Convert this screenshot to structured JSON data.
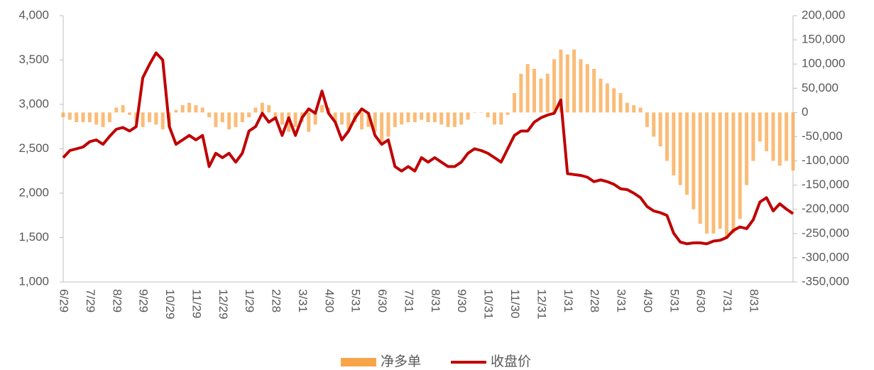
{
  "chart_data": {
    "type": "bar-line",
    "categories": [
      "6/29",
      null,
      null,
      null,
      "7/29",
      null,
      null,
      null,
      "8/29",
      null,
      null,
      null,
      "9/29",
      null,
      null,
      null,
      "10/29",
      null,
      null,
      null,
      "11/29",
      null,
      null,
      null,
      "12/29",
      null,
      null,
      null,
      "1/29",
      null,
      null,
      null,
      "2/28",
      null,
      null,
      null,
      "3/31",
      null,
      null,
      null,
      "4/30",
      null,
      null,
      null,
      "5/31",
      null,
      null,
      null,
      "6/30",
      null,
      null,
      null,
      "7/31",
      null,
      null,
      null,
      "8/31",
      null,
      null,
      null,
      "9/30",
      null,
      null,
      null,
      "10/31",
      null,
      null,
      null,
      "11/30",
      null,
      null,
      null,
      "12/31",
      null,
      null,
      null,
      "1/31",
      null,
      null,
      null,
      "2/28",
      null,
      null,
      null,
      "3/31",
      null,
      null,
      null,
      "4/30",
      null,
      null,
      null,
      "5/31",
      null,
      null,
      null,
      "6/30",
      null,
      null,
      null,
      "7/31",
      null,
      null,
      null,
      "8/31",
      null,
      null,
      null,
      null,
      null,
      null
    ],
    "series": [
      {
        "name": "净多单",
        "kind": "bar",
        "axis": "y2",
        "color": "#f8a54a",
        "values": [
          -10000,
          -15000,
          -20000,
          -20000,
          -20000,
          -25000,
          -30000,
          -20000,
          10000,
          15000,
          -5000,
          -20000,
          -30000,
          -20000,
          -25000,
          -35000,
          -30000,
          5000,
          15000,
          20000,
          15000,
          10000,
          -10000,
          -30000,
          -20000,
          -35000,
          -30000,
          -20000,
          -10000,
          10000,
          20000,
          15000,
          -10000,
          -25000,
          -40000,
          -30000,
          -20000,
          -40000,
          -25000,
          15000,
          10000,
          -20000,
          -25000,
          -35000,
          -20000,
          -35000,
          -30000,
          -40000,
          -60000,
          -50000,
          -30000,
          -25000,
          -20000,
          -20000,
          -15000,
          -20000,
          -20000,
          -25000,
          -30000,
          -30000,
          -25000,
          -15000,
          0,
          0,
          -10000,
          -25000,
          -25000,
          -5000,
          40000,
          80000,
          100000,
          90000,
          70000,
          80000,
          110000,
          130000,
          120000,
          130000,
          110000,
          100000,
          90000,
          70000,
          60000,
          50000,
          40000,
          20000,
          15000,
          10000,
          -30000,
          -50000,
          -70000,
          -100000,
          -130000,
          -150000,
          -170000,
          -200000,
          -230000,
          -250000,
          -250000,
          -240000,
          -260000,
          -250000,
          -220000,
          -150000,
          -100000,
          -60000,
          -80000,
          -100000,
          -110000,
          -100000,
          -120000
        ]
      },
      {
        "name": "收盘价",
        "kind": "line",
        "axis": "y",
        "color": "#c00000",
        "values": [
          2400,
          2480,
          2500,
          2520,
          2580,
          2600,
          2550,
          2640,
          2720,
          2740,
          2700,
          2750,
          3300,
          3450,
          3580,
          3500,
          2750,
          2550,
          2600,
          2650,
          2600,
          2650,
          2300,
          2450,
          2400,
          2450,
          2350,
          2450,
          2700,
          2750,
          2900,
          2800,
          2850,
          2650,
          2850,
          2650,
          2850,
          2950,
          2900,
          3150,
          2900,
          2800,
          2600,
          2700,
          2850,
          2950,
          2900,
          2650,
          2550,
          2600,
          2300,
          2250,
          2300,
          2250,
          2400,
          2350,
          2400,
          2350,
          2300,
          2300,
          2350,
          2450,
          2500,
          2480,
          2450,
          2400,
          2350,
          2500,
          2650,
          2700,
          2700,
          2800,
          2850,
          2880,
          2900,
          3050,
          2220,
          2210,
          2200,
          2180,
          2130,
          2150,
          2130,
          2100,
          2050,
          2040,
          2000,
          1950,
          1850,
          1800,
          1780,
          1750,
          1550,
          1450,
          1430,
          1440,
          1440,
          1430,
          1460,
          1470,
          1500,
          1580,
          1620,
          1600,
          1700,
          1900,
          1950,
          1800,
          1880,
          1820,
          1770
        ]
      }
    ],
    "ylim": [
      1000,
      4000
    ],
    "yticks": [
      {
        "value": 1000,
        "label": "1,000"
      },
      {
        "value": 1500,
        "label": "1,500"
      },
      {
        "value": 2000,
        "label": "2,000"
      },
      {
        "value": 2500,
        "label": "2,500"
      },
      {
        "value": 3000,
        "label": "3,000"
      },
      {
        "value": 3500,
        "label": "3,500"
      },
      {
        "value": 4000,
        "label": "4,000"
      }
    ],
    "y2lim": [
      -350000,
      200000
    ],
    "y2ticks": [
      {
        "value": -350000,
        "label": "-350,000"
      },
      {
        "value": -300000,
        "label": "-300,000"
      },
      {
        "value": -250000,
        "label": "-250,000"
      },
      {
        "value": -200000,
        "label": "-200,000"
      },
      {
        "value": -150000,
        "label": "-150,000"
      },
      {
        "value": -100000,
        "label": "-100,000"
      },
      {
        "value": -50000,
        "label": "-50,000"
      },
      0,
      {
        "value": 50000,
        "label": "50,000"
      },
      {
        "value": 100000,
        "label": "100,000"
      },
      {
        "value": 150000,
        "label": "150,000"
      },
      {
        "value": 200000,
        "label": "200,000"
      }
    ],
    "legend": "bottom"
  }
}
